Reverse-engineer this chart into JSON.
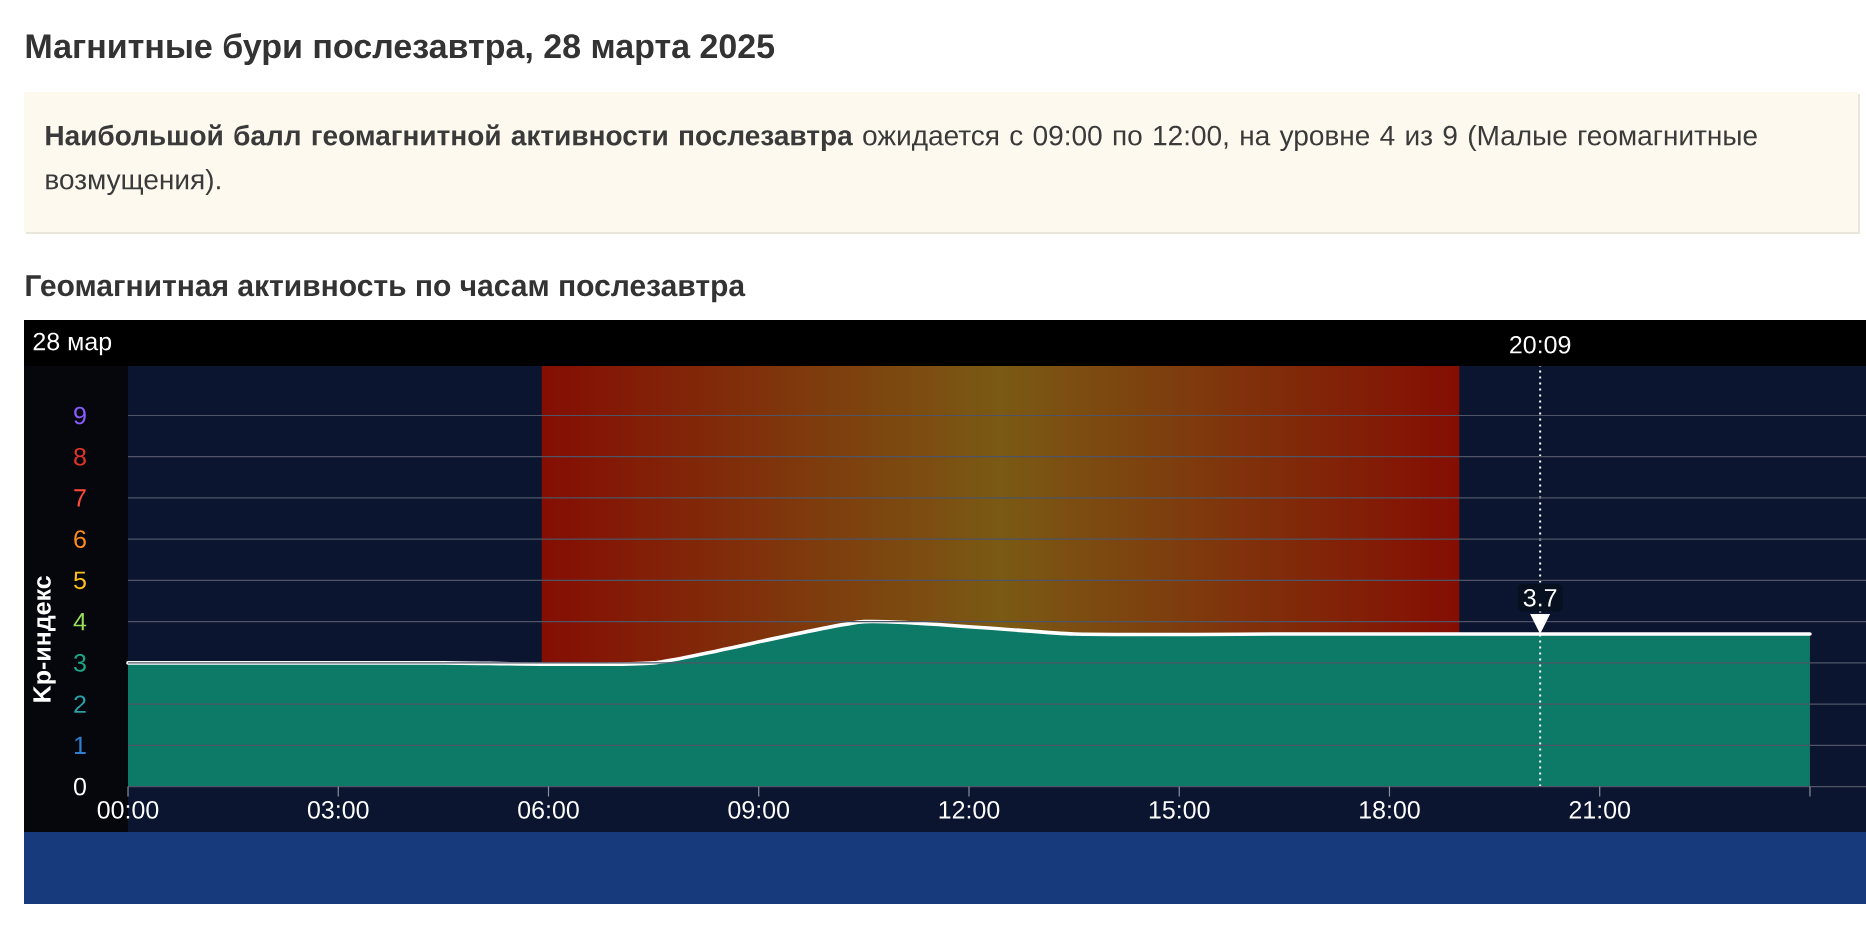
{
  "chart_data": {
    "type": "area",
    "title": "Магнитные бури послезавтра, 28 марта 2025",
    "subtitle": "Геомагнитная активность по часам послезавтра",
    "ylabel": "Kp-индекс",
    "annotations": [
      "**Наибольшой балл геомагнитной активности послезавтра** ожидается с 09:00 по 12:00, на уровне 4 из 9 (Малые геомагнитные возмущения).",
      "28 мар",
      {
        "text": "3.7",
        "x": 20.15,
        "y": 3.7
      }
    ],
    "x": [
      0,
      1.5,
      4.5,
      7.5,
      10.5,
      13.5,
      16.5,
      19.5,
      22.5,
      24
    ],
    "values": [
      3,
      3,
      3,
      3,
      4,
      3.7,
      3.7,
      3.7,
      3.7,
      3.7
    ],
    "color": "#0d7a68",
    "xlim": [
      0,
      24.8
    ],
    "xticks": [
      {
        "value": 0,
        "label": "00:00"
      },
      {
        "value": 3,
        "label": "03:00"
      },
      {
        "value": 6,
        "label": "06:00"
      },
      {
        "value": 9,
        "label": "09:00"
      },
      {
        "value": 12,
        "label": "12:00"
      },
      {
        "value": 15,
        "label": "15:00"
      },
      {
        "value": 18,
        "label": "18:00"
      },
      {
        "value": 21,
        "label": "21:00"
      },
      {
        "value": 24,
        "label": null
      }
    ],
    "ylim": [
      0,
      10.2
    ],
    "yticks": [
      0,
      1,
      2,
      3,
      4,
      5,
      6,
      7,
      8,
      9
    ],
    "grid": "y",
    "ref_lines": [
      {
        "axis": "x",
        "value": 20.15,
        "label": "20:09",
        "color": "#ffffff",
        "line_style": "dotted"
      }
    ],
    "bands": [
      {
        "axis": "x",
        "from": 5.9,
        "to": 19.0,
        "color": "#7a5a14"
      }
    ]
  }
}
